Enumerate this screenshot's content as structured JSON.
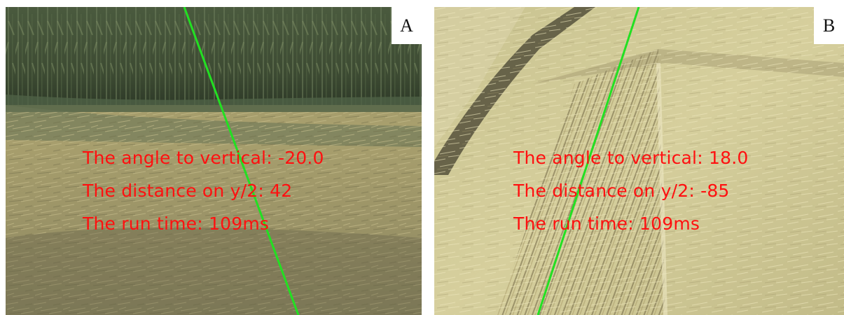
{
  "panels": [
    {
      "label": "A",
      "scene": "corn field edge with stubble ground",
      "annotations": [
        "The angle to vertical: -20.0",
        "The distance on y/2: 42",
        "The run time: 109ms"
      ]
    },
    {
      "label": "B",
      "scene": "harvested wheat field rows",
      "annotations": [
        "The angle to vertical: 18.0",
        "The distance on y/2: -85",
        "The run time: 109ms"
      ]
    }
  ],
  "colors": {
    "text_overlay": "#ff1010",
    "guide_line": "#22e022",
    "label_box": "#ffffff"
  }
}
